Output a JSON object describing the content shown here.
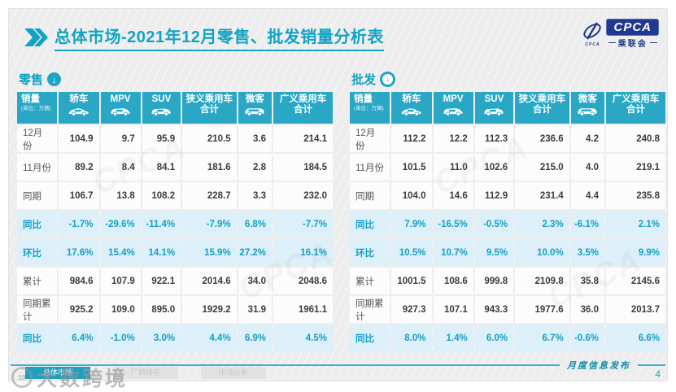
{
  "title": {
    "text": "总体市场-2021年12月零售、批发销量分析表"
  },
  "logo": {
    "en": "CPCA",
    "cn": "乘联会",
    "sub": "CPCA"
  },
  "columns": [
    {
      "label": "销量",
      "sub": "(单位：万辆)"
    },
    {
      "label": "轿车",
      "icon": "sedan-icon"
    },
    {
      "label": "MPV",
      "icon": "mpv-icon"
    },
    {
      "label": "SUV",
      "icon": "suv-icon"
    },
    {
      "label": "狭义乘用车",
      "label2": "合计"
    },
    {
      "label": "微客",
      "icon": "minibus-icon"
    },
    {
      "label": "广义乘用车",
      "label2": "合计"
    }
  ],
  "tables": [
    {
      "name": "retail",
      "label": "零售",
      "icon": "down-arrow-circle-filled-icon",
      "rows": [
        {
          "label": "12月份",
          "highlight": false,
          "values": [
            "104.9",
            "9.7",
            "95.9",
            "210.5",
            "3.6",
            "214.1"
          ]
        },
        {
          "label": "11月份",
          "highlight": false,
          "values": [
            "89.2",
            "8.4",
            "84.1",
            "181.6",
            "2.8",
            "184.5"
          ]
        },
        {
          "label": "同期",
          "highlight": false,
          "values": [
            "106.7",
            "13.8",
            "108.2",
            "228.7",
            "3.3",
            "232.0"
          ]
        },
        {
          "label": "同比",
          "highlight": true,
          "values": [
            "-1.7%",
            "-29.6%",
            "-11.4%",
            "-7.9%",
            "6.8%",
            "-7.7%"
          ]
        },
        {
          "label": "环比",
          "highlight": true,
          "values": [
            "17.6%",
            "15.4%",
            "14.1%",
            "15.9%",
            "27.2%",
            "16.1%"
          ]
        },
        {
          "label": "累计",
          "highlight": false,
          "values": [
            "984.6",
            "107.9",
            "922.1",
            "2014.6",
            "34.0",
            "2048.6"
          ]
        },
        {
          "label": "同期累计",
          "highlight": false,
          "values": [
            "925.2",
            "109.0",
            "895.0",
            "1929.2",
            "31.9",
            "1961.1"
          ]
        },
        {
          "label": "同比",
          "highlight": true,
          "values": [
            "6.4%",
            "-1.0%",
            "3.0%",
            "4.4%",
            "6.9%",
            "4.5%"
          ]
        }
      ]
    },
    {
      "name": "wholesale",
      "label": "批发",
      "icon": "down-arrow-circle-outline-icon",
      "rows": [
        {
          "label": "12月份",
          "highlight": false,
          "values": [
            "112.2",
            "12.2",
            "112.3",
            "236.6",
            "4.2",
            "240.8"
          ]
        },
        {
          "label": "11月份",
          "highlight": false,
          "values": [
            "101.5",
            "11.0",
            "102.6",
            "215.0",
            "4.0",
            "219.1"
          ]
        },
        {
          "label": "同期",
          "highlight": false,
          "values": [
            "104.0",
            "14.6",
            "112.9",
            "231.4",
            "4.4",
            "235.8"
          ]
        },
        {
          "label": "同比",
          "highlight": true,
          "values": [
            "7.9%",
            "-16.5%",
            "-0.5%",
            "2.3%",
            "-6.1%",
            "2.1%"
          ]
        },
        {
          "label": "环比",
          "highlight": true,
          "values": [
            "10.5%",
            "10.7%",
            "9.5%",
            "10.0%",
            "3.5%",
            "9.9%"
          ]
        },
        {
          "label": "累计",
          "highlight": false,
          "values": [
            "1001.5",
            "108.6",
            "999.8",
            "2109.8",
            "35.8",
            "2145.6"
          ]
        },
        {
          "label": "同期累计",
          "highlight": false,
          "values": [
            "927.3",
            "107.1",
            "943.3",
            "1977.6",
            "36.0",
            "2013.7"
          ]
        },
        {
          "label": "同比",
          "highlight": true,
          "values": [
            "8.0%",
            "1.4%",
            "6.0%",
            "6.7%",
            "-0.6%",
            "6.6%"
          ]
        }
      ]
    }
  ],
  "footer": {
    "label": "月度信息发布",
    "page": "4"
  },
  "bottom_tabs": [
    {
      "label": "总体市场",
      "active": true
    },
    {
      "label": "厂商排名",
      "active": false
    },
    {
      "label": "市场分析",
      "active": false
    }
  ],
  "watermark": {
    "text": "大数跨境"
  },
  "colors": {
    "accent": "#12a3c4",
    "table_header": "#2aa7c5",
    "highlight_bg": "#ddeff8",
    "highlight_text": "#14a0c4",
    "logo_blue": "#20388f"
  }
}
